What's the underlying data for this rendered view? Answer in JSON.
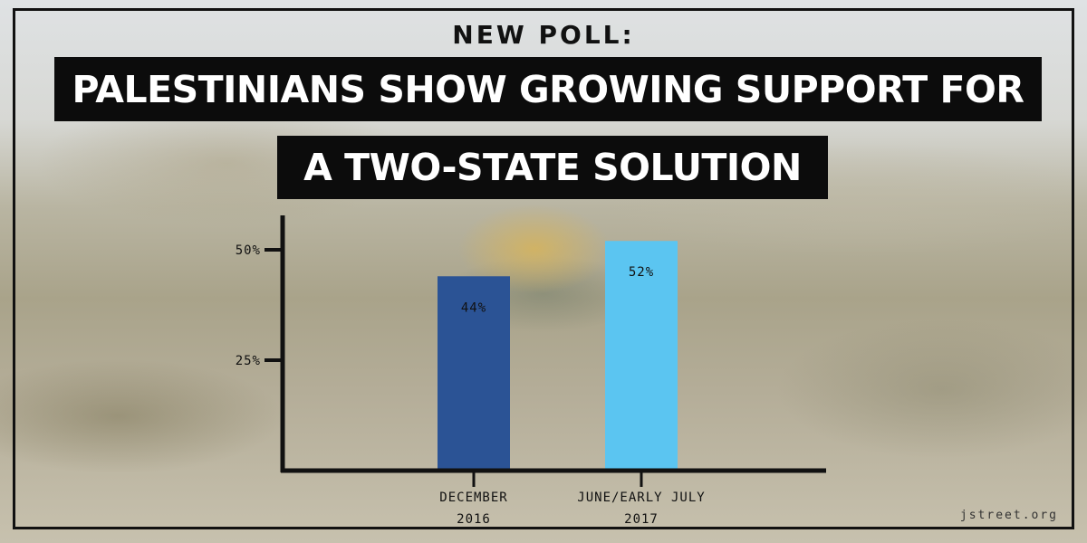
{
  "header": {
    "kicker": "NEW POLL:",
    "headline_line1": "PALESTINIANS SHOW GROWING SUPPORT FOR",
    "headline_line2": "A TWO-STATE SOLUTION"
  },
  "footer": {
    "credit": "jstreet.org"
  },
  "colors": {
    "axis": "#111111",
    "bar_december": "#2b5395",
    "bar_june": "#5bc5f1"
  },
  "chart_data": {
    "type": "bar",
    "categories": [
      [
        "DECEMBER",
        "2016"
      ],
      [
        "JUNE/EARLY JULY",
        "2017"
      ]
    ],
    "values": [
      44,
      52
    ],
    "value_labels": [
      "44%",
      "52%"
    ],
    "ylim": [
      0,
      55
    ],
    "yticks": [
      25,
      50
    ],
    "ytick_labels": [
      "25%",
      "50%"
    ],
    "grid": false
  }
}
